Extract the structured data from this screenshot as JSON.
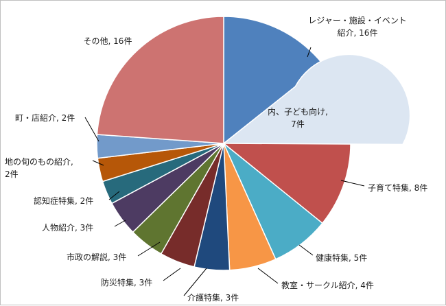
{
  "chart_data": {
    "type": "pie",
    "title": "",
    "slices": [
      {
        "label_lines": [
          "レジャー・施設・イベント",
          "紹介, 16件"
        ],
        "value": 16,
        "color": "#4f81bd"
      },
      {
        "label_lines": [
          "内、子ども向け,",
          "7件"
        ],
        "value": 7,
        "color": "#dce6f2",
        "inner": true
      },
      {
        "label_lines": [
          "子育て特集, 8件"
        ],
        "value": 8,
        "color": "#c0504d"
      },
      {
        "label_lines": [
          "健康特集, 5件"
        ],
        "value": 5,
        "color": "#4bacc6"
      },
      {
        "label_lines": [
          "教室・サークル紹介, 4件"
        ],
        "value": 4,
        "color": "#f79646"
      },
      {
        "label_lines": [
          "介護特集, 3件"
        ],
        "value": 3,
        "color": "#1f497d"
      },
      {
        "label_lines": [
          "防災特集, 3件"
        ],
        "value": 3,
        "color": "#772c2a"
      },
      {
        "label_lines": [
          "市政の解説, 3件"
        ],
        "value": 3,
        "color": "#5f7530"
      },
      {
        "label_lines": [
          "人物紹介, 3件"
        ],
        "value": 3,
        "color": "#4d3b62"
      },
      {
        "label_lines": [
          "認知症特集, 2件"
        ],
        "value": 2,
        "color": "#276a7c"
      },
      {
        "label_lines": [
          "地の旬のもの紹介,",
          "2件"
        ],
        "value": 2,
        "color": "#b65708"
      },
      {
        "label_lines": [
          "町・店紹介, 2件"
        ],
        "value": 2,
        "color": "#729aca"
      },
      {
        "label_lines": [
          "その他, 16件"
        ],
        "value": 16,
        "color": "#cd7371"
      }
    ]
  }
}
